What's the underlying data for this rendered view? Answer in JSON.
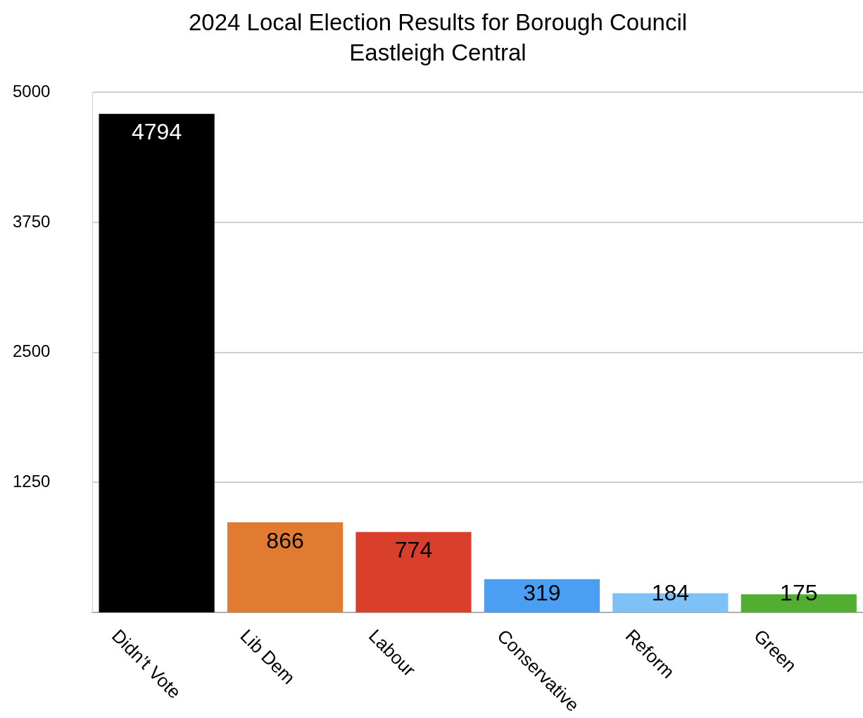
{
  "chart_data": {
    "type": "bar",
    "title": "2024 Local Election Results for Borough Council",
    "subtitle": "Eastleigh Central",
    "categories": [
      "Didn’t Vote",
      "Lib Dem",
      "Labour",
      "Conservative",
      "Reform",
      "Green"
    ],
    "values": [
      4794,
      866,
      774,
      319,
      184,
      175
    ],
    "colors": [
      "#000000",
      "#e07b31",
      "#d9402b",
      "#4b9ff2",
      "#7dc1f7",
      "#52ae30"
    ],
    "ylim": [
      0,
      5000
    ],
    "yticks": [
      1250,
      2500,
      3750,
      5000
    ],
    "grid": true,
    "data_labels": true
  }
}
